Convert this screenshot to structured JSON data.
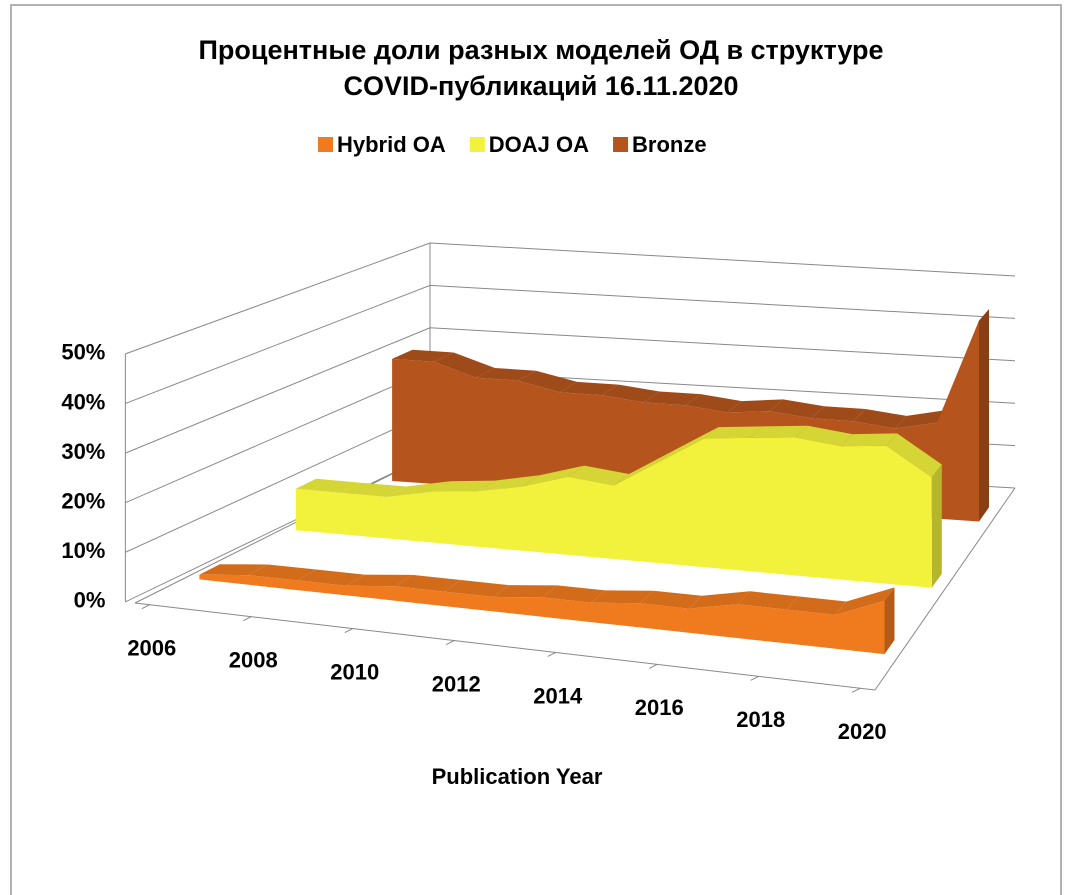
{
  "chart_data": {
    "type": "area3d",
    "title": [
      "Процентные доли разных моделей ОД в структуре",
      "COVID-публикаций 16.11.2020"
    ],
    "x_label": "Publication Year",
    "x": [
      2006,
      2007,
      2008,
      2009,
      2010,
      2011,
      2012,
      2013,
      2014,
      2015,
      2016,
      2017,
      2018,
      2019,
      2020
    ],
    "xlim": [
      2006,
      2020
    ],
    "xticks": [
      2006,
      2008,
      2010,
      2012,
      2014,
      2016,
      2018,
      2020
    ],
    "ylim": [
      0,
      50
    ],
    "yticks": [
      {
        "value": 0,
        "label": "0%"
      },
      {
        "value": 10,
        "label": "10%"
      },
      {
        "value": 20,
        "label": "20%"
      },
      {
        "value": 30,
        "label": "30%"
      },
      {
        "value": 40,
        "label": "40%"
      },
      {
        "value": 50,
        "label": "50%"
      }
    ],
    "grid": true,
    "legend": "top",
    "series": [
      {
        "name": "Hybrid OA",
        "color": "#f07b1e",
        "values": [
          1,
          2,
          2,
          2,
          3,
          3,
          3,
          4,
          4,
          5,
          5,
          7,
          7,
          7,
          11
        ]
      },
      {
        "name": "DOAJ OA",
        "color": "#f2f23c",
        "values": [
          9,
          9,
          9,
          11,
          12,
          14,
          17,
          16,
          22,
          28,
          29,
          30,
          29,
          30,
          24
        ]
      },
      {
        "name": "Bronze",
        "color": "#b5541c",
        "values": [
          28,
          28,
          25,
          25,
          23,
          23,
          22,
          22,
          21,
          22,
          21,
          21,
          20,
          22,
          46
        ]
      }
    ]
  }
}
